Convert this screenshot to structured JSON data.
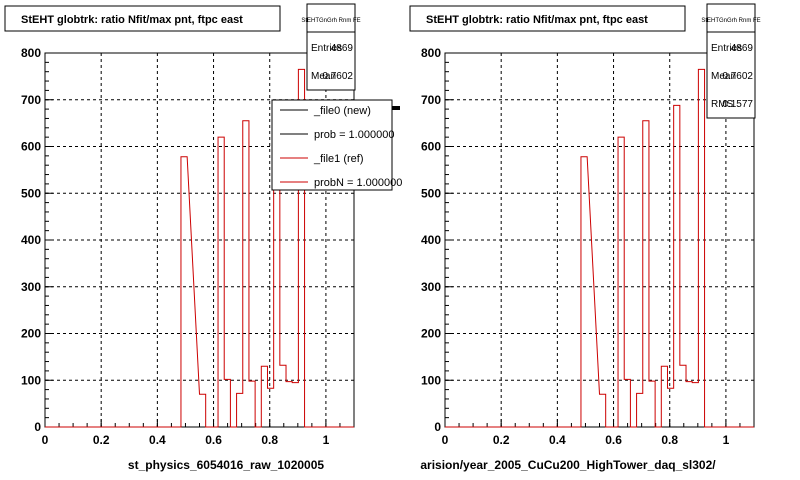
{
  "colors": {
    "background": "#ffffff",
    "frame": "#000000",
    "grid": "#000000",
    "ref_hist": "#cc0000",
    "new_hist": "#000000"
  },
  "chart_data": [
    {
      "type": "histogram",
      "title": "StEHT globtrk: ratio Nfit/max pnt, ftpc east",
      "xlabel": "st_physics_6054016_raw_1020005",
      "ylabel": "",
      "xlim": [
        0,
        1.1
      ],
      "ylim": [
        0,
        800
      ],
      "xticks": [
        "0",
        "0.2",
        "0.4",
        "0.6",
        "0.8",
        "1"
      ],
      "xtick_values": [
        0,
        0.2,
        0.4,
        0.6,
        0.8,
        1
      ],
      "yticks": [
        "0",
        "100",
        "200",
        "300",
        "400",
        "500",
        "600",
        "700",
        "800"
      ],
      "ytick_values": [
        0,
        100,
        200,
        300,
        400,
        500,
        600,
        700,
        800
      ],
      "grid": true,
      "bin_width": 0.022,
      "bins": [
        {
          "x": 0.484,
          "y": 578
        },
        {
          "x": 0.55,
          "y": 70
        },
        {
          "x": 0.572,
          "y": 0
        },
        {
          "x": 0.594,
          "y": 0
        },
        {
          "x": 0.616,
          "y": 620
        },
        {
          "x": 0.638,
          "y": 102
        },
        {
          "x": 0.66,
          "y": 0
        },
        {
          "x": 0.682,
          "y": 72
        },
        {
          "x": 0.704,
          "y": 655
        },
        {
          "x": 0.726,
          "y": 98
        },
        {
          "x": 0.748,
          "y": 0
        },
        {
          "x": 0.77,
          "y": 130
        },
        {
          "x": 0.792,
          "y": 83
        },
        {
          "x": 0.814,
          "y": 688
        },
        {
          "x": 0.836,
          "y": 132
        },
        {
          "x": 0.858,
          "y": 97
        },
        {
          "x": 0.88,
          "y": 95
        },
        {
          "x": 0.902,
          "y": 765
        },
        {
          "x": 0.924,
          "y": 0
        }
      ],
      "stats": {
        "name": "StEHTGnGrh Rnm FE",
        "entries_label": "Entries",
        "entries": "4869",
        "mean_label": "Mean",
        "mean": "0.7602",
        "rms_label": "RMS",
        "rms": "0.1577"
      },
      "legend": [
        {
          "label": "_file0 (new)",
          "color": "#000000"
        },
        {
          "label": "prob = 1.000000",
          "color": "#000000"
        },
        {
          "label": "_file1 (ref)",
          "color": "#cc0000"
        },
        {
          "label": "probN = 1.000000",
          "color": "#cc0000"
        }
      ],
      "legend_position": "top-right"
    },
    {
      "type": "histogram",
      "title": "StEHT globtrk: ratio Nfit/max pnt, ftpc east",
      "xlabel": "arision/year_2005_CuCu200_HighTower_daq_sl302/",
      "ylabel": "",
      "xlim": [
        0,
        1.1
      ],
      "ylim": [
        0,
        800
      ],
      "xticks": [
        "0",
        "0.2",
        "0.4",
        "0.6",
        "0.8",
        "1"
      ],
      "xtick_values": [
        0,
        0.2,
        0.4,
        0.6,
        0.8,
        1
      ],
      "yticks": [
        "0",
        "100",
        "200",
        "300",
        "400",
        "500",
        "600",
        "700",
        "800"
      ],
      "ytick_values": [
        0,
        100,
        200,
        300,
        400,
        500,
        600,
        700,
        800
      ],
      "grid": true,
      "bin_width": 0.022,
      "bins": [
        {
          "x": 0.484,
          "y": 578
        },
        {
          "x": 0.55,
          "y": 70
        },
        {
          "x": 0.572,
          "y": 0
        },
        {
          "x": 0.594,
          "y": 0
        },
        {
          "x": 0.616,
          "y": 620
        },
        {
          "x": 0.638,
          "y": 102
        },
        {
          "x": 0.66,
          "y": 0
        },
        {
          "x": 0.682,
          "y": 72
        },
        {
          "x": 0.704,
          "y": 655
        },
        {
          "x": 0.726,
          "y": 98
        },
        {
          "x": 0.748,
          "y": 0
        },
        {
          "x": 0.77,
          "y": 130
        },
        {
          "x": 0.792,
          "y": 83
        },
        {
          "x": 0.814,
          "y": 688
        },
        {
          "x": 0.836,
          "y": 132
        },
        {
          "x": 0.858,
          "y": 97
        },
        {
          "x": 0.88,
          "y": 95
        },
        {
          "x": 0.902,
          "y": 765
        },
        {
          "x": 0.924,
          "y": 0
        }
      ],
      "stats": {
        "name": "StEHTGnGrh Rnm FE",
        "entries_label": "Entries",
        "entries": "4869",
        "mean_label": "Mean",
        "mean": "0.7602",
        "rms_label": "RMS",
        "rms": "0.1577"
      },
      "legend": [],
      "legend_position": ""
    }
  ]
}
